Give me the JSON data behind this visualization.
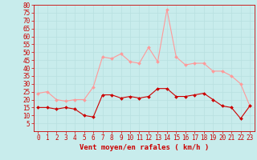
{
  "title": "",
  "xlabel": "Vent moyen/en rafales ( km/h )",
  "background_color": "#c8ecec",
  "grid_color": "#aadddd",
  "hours": [
    0,
    1,
    2,
    3,
    4,
    5,
    6,
    7,
    8,
    9,
    10,
    11,
    12,
    13,
    14,
    15,
    16,
    17,
    18,
    19,
    20,
    21,
    22,
    23
  ],
  "vent_moyen": [
    15,
    15,
    14,
    15,
    14,
    10,
    9,
    23,
    23,
    21,
    22,
    21,
    22,
    27,
    27,
    22,
    22,
    23,
    24,
    20,
    16,
    15,
    8,
    16
  ],
  "rafales": [
    24,
    25,
    20,
    19,
    20,
    20,
    28,
    47,
    46,
    49,
    44,
    43,
    53,
    44,
    77,
    47,
    42,
    43,
    43,
    38,
    38,
    35,
    30,
    16
  ],
  "line_color_moyen": "#cc0000",
  "line_color_rafales": "#ff9999",
  "ylim": [
    0,
    80
  ],
  "yticks": [
    5,
    10,
    15,
    20,
    25,
    30,
    35,
    40,
    45,
    50,
    55,
    60,
    65,
    70,
    75,
    80
  ],
  "tick_fontsize": 5.5,
  "xlabel_fontsize": 6.5
}
